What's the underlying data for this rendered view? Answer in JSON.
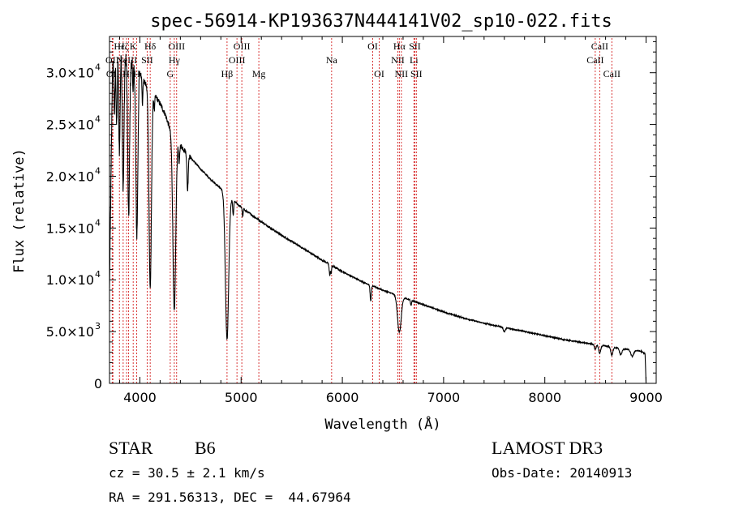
{
  "chart_data": {
    "type": "line",
    "title": "spec-56914-KP193637N444141V02_sp10-022.fits",
    "xlabel": "Wavelength (Å)",
    "ylabel": "Flux (relative)",
    "xlim": [
      3700,
      9100
    ],
    "ylim": [
      0,
      33500
    ],
    "xticks": [
      4000,
      5000,
      6000,
      7000,
      8000,
      9000
    ],
    "yticks": [
      {
        "value": 0,
        "mant": "0",
        "exp": ""
      },
      {
        "value": 5000,
        "mant": "5.0×10",
        "exp": "3"
      },
      {
        "value": 10000,
        "mant": "1.0×10",
        "exp": "4"
      },
      {
        "value": 15000,
        "mant": "1.5×10",
        "exp": "4"
      },
      {
        "value": 20000,
        "mant": "2.0×10",
        "exp": "4"
      },
      {
        "value": 25000,
        "mant": "2.5×10",
        "exp": "4"
      },
      {
        "value": 30000,
        "mant": "3.0×10",
        "exp": "4"
      }
    ],
    "continuum": {
      "x": [
        3700,
        3730,
        3760,
        3800,
        3850,
        3900,
        3950,
        4000,
        4050,
        4100,
        4150,
        4200,
        4250,
        4300,
        4400,
        4500,
        4600,
        4700,
        4800,
        4900,
        5000,
        5200,
        5400,
        5600,
        5800,
        6000,
        6200,
        6400,
        6600,
        6800,
        7000,
        7200,
        7400,
        7600,
        7800,
        8000,
        8200,
        8400,
        8600,
        8800,
        8950,
        9000
      ],
      "y": [
        9000,
        30500,
        33000,
        32500,
        31500,
        31000,
        30500,
        30000,
        29000,
        28300,
        27800,
        27000,
        26000,
        24500,
        23000,
        21800,
        20700,
        19700,
        18800,
        17900,
        17000,
        15600,
        14300,
        13100,
        11900,
        10800,
        9800,
        9000,
        8300,
        7600,
        6900,
        6300,
        5800,
        5400,
        5000,
        4600,
        4200,
        3900,
        3600,
        3300,
        3100,
        2800
      ]
    },
    "absorption_lines": [
      {
        "x": 3750,
        "depth": 6000,
        "w": 6
      },
      {
        "x": 3771,
        "depth": 8000,
        "w": 6
      },
      {
        "x": 3798,
        "depth": 10000,
        "w": 7
      },
      {
        "x": 3835,
        "depth": 13000,
        "w": 8
      },
      {
        "x": 3889,
        "depth": 15000,
        "w": 9
      },
      {
        "x": 3933,
        "depth": 3000,
        "w": 3
      },
      {
        "x": 3970,
        "depth": 16000,
        "w": 10
      },
      {
        "x": 4026,
        "depth": 2500,
        "w": 4
      },
      {
        "x": 4102,
        "depth": 19000,
        "w": 12
      },
      {
        "x": 4143,
        "depth": 1500,
        "w": 4
      },
      {
        "x": 4340,
        "depth": 17000,
        "w": 14
      },
      {
        "x": 4388,
        "depth": 2000,
        "w": 5
      },
      {
        "x": 4471,
        "depth": 3500,
        "w": 6
      },
      {
        "x": 4861,
        "depth": 14000,
        "w": 16
      },
      {
        "x": 4922,
        "depth": 1500,
        "w": 5
      },
      {
        "x": 5016,
        "depth": 800,
        "w": 4
      },
      {
        "x": 5876,
        "depth": 1000,
        "w": 6
      },
      {
        "x": 5890,
        "depth": 700,
        "w": 4
      },
      {
        "x": 6280,
        "depth": 1500,
        "w": 6
      },
      {
        "x": 6563,
        "depth": 3500,
        "w": 18
      },
      {
        "x": 6678,
        "depth": 500,
        "w": 5
      },
      {
        "x": 7600,
        "depth": 400,
        "w": 10
      },
      {
        "x": 8498,
        "depth": 500,
        "w": 8
      },
      {
        "x": 8542,
        "depth": 800,
        "w": 10
      },
      {
        "x": 8662,
        "depth": 800,
        "w": 10
      },
      {
        "x": 8750,
        "depth": 600,
        "w": 12
      },
      {
        "x": 8863,
        "depth": 600,
        "w": 14
      }
    ],
    "line_markers": [
      {
        "x": 3727,
        "name": "OII",
        "row": 1
      },
      {
        "x": 3734,
        "name": "OII",
        "row": 2
      },
      {
        "x": 3798,
        "name": "Hε",
        "row": 0
      },
      {
        "x": 3835,
        "name": "Hζ",
        "row": 0
      },
      {
        "x": 3869,
        "name": "NeIII",
        "row": 1
      },
      {
        "x": 3889,
        "name": "Hη",
        "row": 2
      },
      {
        "x": 3934,
        "name": "K",
        "row": 0
      },
      {
        "x": 3969,
        "name": "H",
        "row": 2
      },
      {
        "x": 4072,
        "name": "SII",
        "row": 1
      },
      {
        "x": 4102,
        "name": "Hδ",
        "row": 0
      },
      {
        "x": 4300,
        "name": "G",
        "row": 2
      },
      {
        "x": 4340,
        "name": "Hγ",
        "row": 1
      },
      {
        "x": 4363,
        "name": "OIII",
        "row": 0
      },
      {
        "x": 4861,
        "name": "Hβ",
        "row": 2
      },
      {
        "x": 4959,
        "name": "OIII",
        "row": 1
      },
      {
        "x": 5007,
        "name": "OIII",
        "row": 0
      },
      {
        "x": 5175,
        "name": "Mg",
        "row": 2
      },
      {
        "x": 5894,
        "name": "Na",
        "row": 1
      },
      {
        "x": 6300,
        "name": "OI",
        "row": 0
      },
      {
        "x": 6364,
        "name": "OI",
        "row": 2
      },
      {
        "x": 6548,
        "name": "NII",
        "row": 1
      },
      {
        "x": 6563,
        "name": "Hα",
        "row": 0
      },
      {
        "x": 6583,
        "name": "NII",
        "row": 2
      },
      {
        "x": 6707,
        "name": "Li",
        "row": 1
      },
      {
        "x": 6716,
        "name": "SII",
        "row": 0
      },
      {
        "x": 6731,
        "name": "SII",
        "row": 2
      },
      {
        "x": 8498,
        "name": "CaII",
        "row": 1
      },
      {
        "x": 8542,
        "name": "CaII",
        "row": 0
      },
      {
        "x": 8662,
        "name": "CaII",
        "row": 2
      }
    ]
  },
  "info": {
    "object_class": "STAR",
    "subclass": "B6",
    "survey": "LAMOST DR3",
    "redshift": "cz = 30.5 ± 2.1 km/s",
    "obs_date": "Obs-Date: 20140913",
    "coords": "RA = 291.56313, DEC =  44.67964"
  }
}
